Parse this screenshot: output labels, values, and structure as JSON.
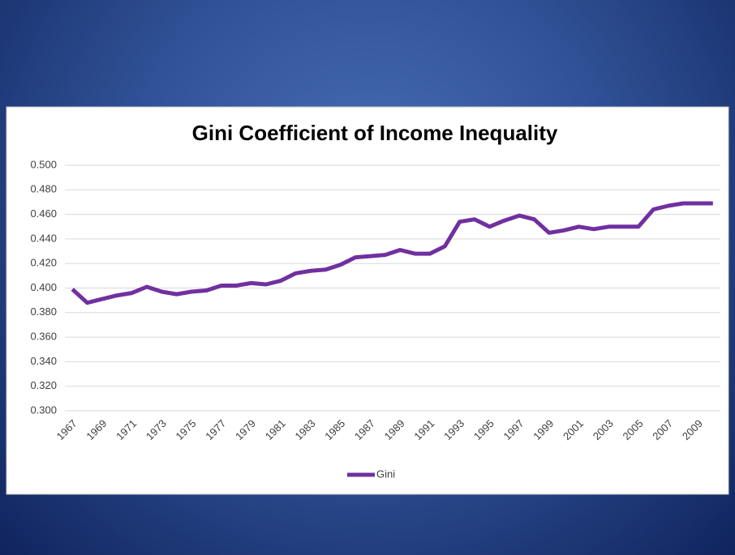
{
  "chart_data": {
    "type": "line",
    "title": "Gini Coefficient of Income Inequality",
    "categories": [
      "1967",
      null,
      "1969",
      null,
      "1971",
      null,
      "1973",
      null,
      "1975",
      null,
      "1977",
      null,
      "1979",
      null,
      "1981",
      null,
      "1983",
      null,
      "1985",
      null,
      "1987",
      null,
      "1989",
      null,
      "1991",
      null,
      "1993",
      null,
      "1995",
      null,
      "1997",
      null,
      "1999",
      null,
      "2001",
      null,
      "2003",
      null,
      "2005",
      null,
      "2007",
      null,
      "2009",
      null
    ],
    "series": [
      {
        "name": "Gini",
        "color": "#7030a0",
        "values": [
          0.399,
          0.388,
          0.391,
          0.394,
          0.396,
          0.401,
          0.397,
          0.395,
          0.397,
          0.398,
          0.402,
          0.402,
          0.404,
          0.403,
          0.406,
          0.412,
          0.414,
          0.415,
          0.419,
          0.425,
          0.426,
          0.427,
          0.431,
          0.428,
          0.428,
          0.434,
          0.454,
          0.456,
          0.45,
          0.455,
          0.459,
          0.456,
          0.445,
          0.447,
          0.45,
          0.448,
          0.45,
          0.45,
          0.45,
          0.464,
          0.467,
          0.469,
          0.469,
          0.469
        ]
      }
    ],
    "ylim": [
      0.3,
      0.5
    ],
    "yticks": [
      {
        "value": 0.3,
        "label": "0.300"
      },
      {
        "value": 0.32,
        "label": "0.320"
      },
      {
        "value": 0.34,
        "label": "0.340"
      },
      {
        "value": 0.36,
        "label": "0.360"
      },
      {
        "value": 0.38,
        "label": "0.380"
      },
      {
        "value": 0.4,
        "label": "0.400"
      },
      {
        "value": 0.42,
        "label": "0.420"
      },
      {
        "value": 0.44,
        "label": "0.440"
      },
      {
        "value": 0.46,
        "label": "0.460"
      },
      {
        "value": 0.48,
        "label": "0.480"
      },
      {
        "value": 0.5,
        "label": "0.500"
      }
    ],
    "grid": true,
    "legend": "bottom"
  }
}
